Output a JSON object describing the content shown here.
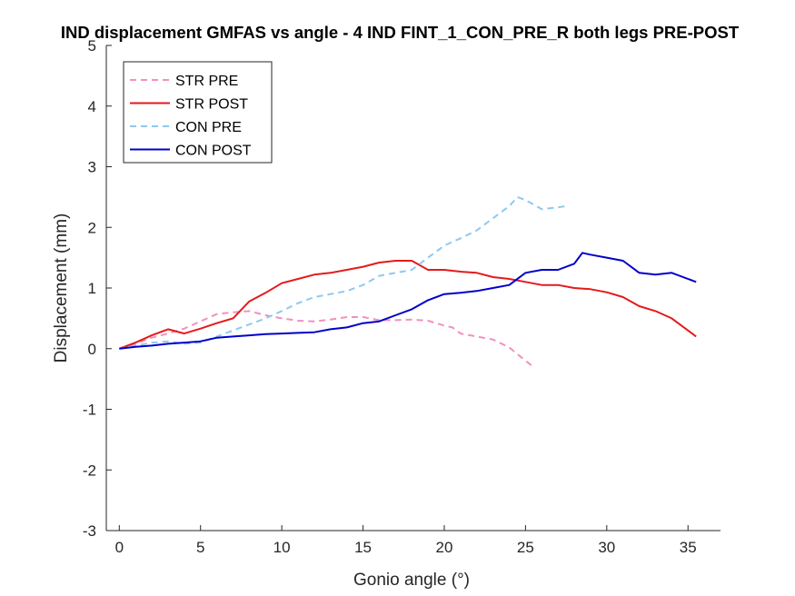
{
  "chart_data": {
    "type": "line",
    "title": "IND displacement GMFAS vs angle - 4 IND FINT_1_CON_PRE_R both legs PRE-POST",
    "xlabel": "Gonio angle (°)",
    "ylabel": "Displacement (mm)",
    "xlim": [
      -0.8,
      37
    ],
    "ylim": [
      -3,
      5
    ],
    "xticks": [
      0,
      5,
      10,
      15,
      20,
      25,
      30,
      35
    ],
    "yticks": [
      -3,
      -2,
      -1,
      0,
      1,
      2,
      3,
      4,
      5
    ],
    "grid": false,
    "legend_position": "top-left",
    "series": [
      {
        "name": "STR PRE",
        "color": "#f48fbf",
        "dash": true,
        "x": [
          0,
          1,
          2,
          3,
          4,
          5,
          6,
          7,
          8,
          9,
          10,
          11,
          12,
          13,
          14,
          15,
          16,
          17,
          18,
          19,
          20,
          20.5,
          21,
          22,
          23,
          24,
          25,
          25.5
        ],
        "y": [
          0,
          0.08,
          0.18,
          0.25,
          0.33,
          0.45,
          0.57,
          0.6,
          0.62,
          0.55,
          0.5,
          0.46,
          0.45,
          0.48,
          0.52,
          0.52,
          0.47,
          0.47,
          0.48,
          0.46,
          0.38,
          0.35,
          0.25,
          0.2,
          0.15,
          0.02,
          -0.2,
          -0.3
        ]
      },
      {
        "name": "STR POST",
        "color": "#e41a1c",
        "dash": false,
        "x": [
          0,
          1,
          2,
          3,
          4,
          5,
          6,
          7,
          8,
          9,
          10,
          11,
          12,
          13,
          14,
          15,
          16,
          17,
          18,
          19,
          20,
          21,
          22,
          23,
          24,
          25,
          26,
          27,
          28,
          29,
          30,
          31,
          32,
          33,
          34,
          35,
          35.5
        ],
        "y": [
          0,
          0.1,
          0.22,
          0.32,
          0.25,
          0.33,
          0.42,
          0.5,
          0.78,
          0.92,
          1.08,
          1.15,
          1.22,
          1.25,
          1.3,
          1.35,
          1.42,
          1.45,
          1.45,
          1.3,
          1.3,
          1.27,
          1.25,
          1.18,
          1.15,
          1.1,
          1.05,
          1.05,
          1.0,
          0.98,
          0.93,
          0.85,
          0.7,
          0.62,
          0.5,
          0.3,
          0.2
        ]
      },
      {
        "name": "CON PRE",
        "color": "#8ec9ef",
        "dash": true,
        "x": [
          0,
          1,
          2,
          3,
          4,
          5,
          6,
          7,
          8,
          9,
          10,
          11,
          12,
          13,
          14,
          15,
          16,
          17,
          18,
          19,
          20,
          21,
          22,
          23,
          24,
          24.5,
          25,
          26,
          27,
          27.5
        ],
        "y": [
          0,
          0.05,
          0.1,
          0.12,
          0.08,
          0.1,
          0.2,
          0.3,
          0.4,
          0.5,
          0.62,
          0.75,
          0.85,
          0.9,
          0.95,
          1.05,
          1.2,
          1.25,
          1.3,
          1.5,
          1.7,
          1.82,
          1.95,
          2.15,
          2.35,
          2.5,
          2.45,
          2.3,
          2.33,
          2.35
        ]
      },
      {
        "name": "CON POST",
        "color": "#0000cc",
        "dash": false,
        "x": [
          0,
          1,
          2,
          3,
          4,
          5,
          6,
          7,
          8,
          9,
          10,
          11,
          12,
          13,
          14,
          15,
          16,
          17,
          18,
          19,
          20,
          21,
          22,
          23,
          24,
          25,
          26,
          27,
          28,
          28.5,
          29,
          30,
          31,
          32,
          33,
          34,
          35,
          35.5
        ],
        "y": [
          0,
          0.03,
          0.05,
          0.08,
          0.1,
          0.12,
          0.18,
          0.2,
          0.22,
          0.24,
          0.25,
          0.26,
          0.27,
          0.32,
          0.35,
          0.42,
          0.45,
          0.55,
          0.65,
          0.8,
          0.9,
          0.92,
          0.95,
          1.0,
          1.05,
          1.25,
          1.3,
          1.3,
          1.4,
          1.58,
          1.55,
          1.5,
          1.45,
          1.25,
          1.22,
          1.25,
          1.15,
          1.1
        ]
      }
    ]
  }
}
